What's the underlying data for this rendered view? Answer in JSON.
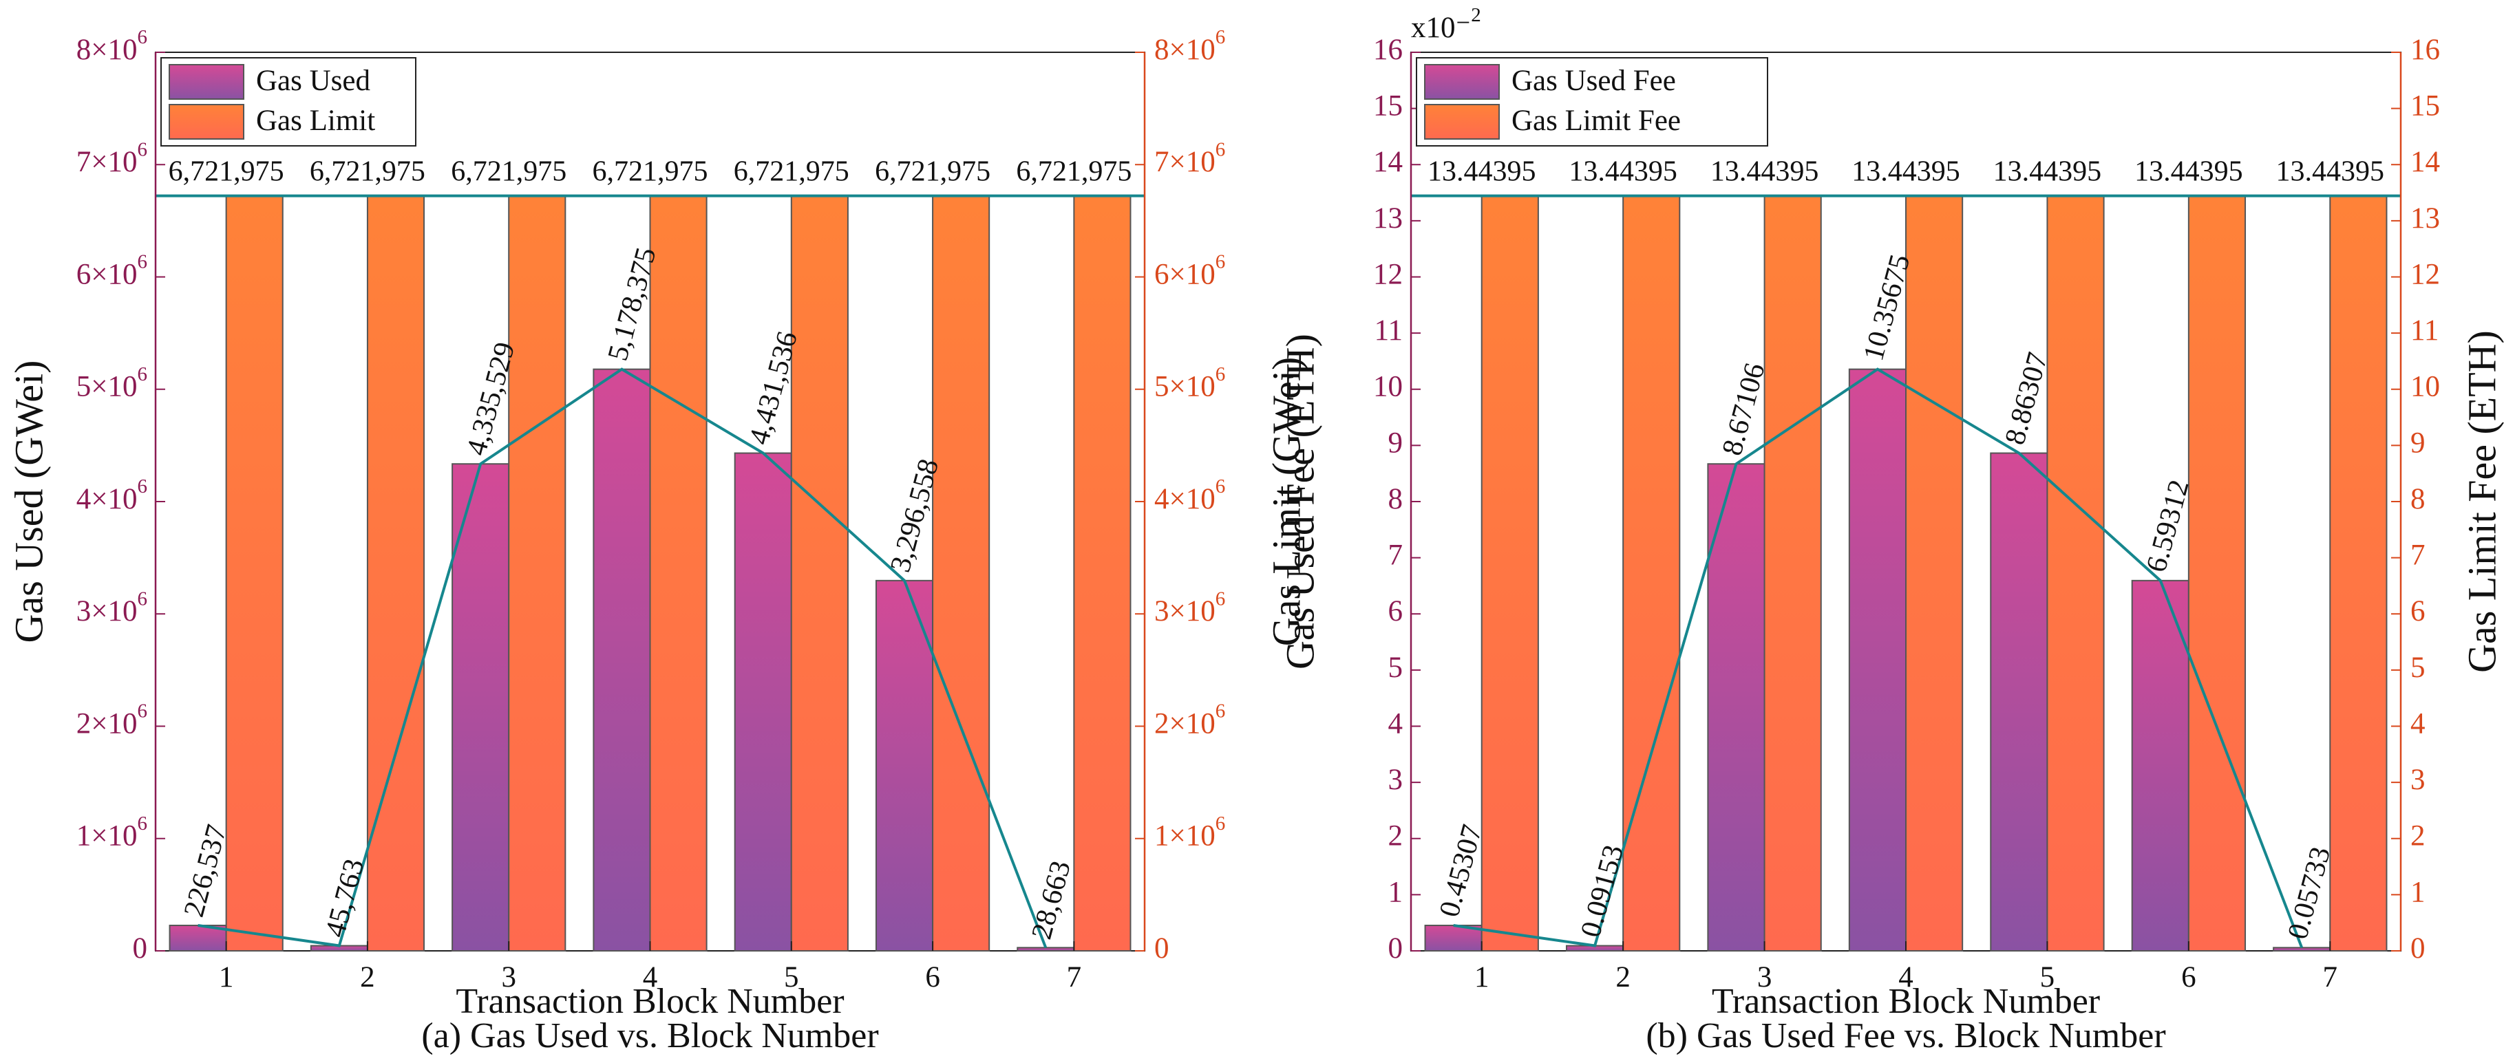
{
  "colors": {
    "used_top": "#d44a96",
    "used_bottom": "#8a52a3",
    "limit_top": "#ff8238",
    "limit_bottom": "#ff6a4f",
    "left_axis": "#8b1a52",
    "right_axis": "#d9481c",
    "trend_line": "#16878e",
    "bar_edge": "#555555"
  },
  "chart_data": [
    {
      "type": "bar",
      "title": "(a) Gas Used vs. Block Number",
      "xlabel": "Transaction Block Number",
      "ylabel_left": "Gas Used (GWei)",
      "ylabel_right": "Gas Limit (GWei)",
      "categories": [
        "1",
        "2",
        "3",
        "4",
        "5",
        "6",
        "7"
      ],
      "ylim": [
        0,
        8000000
      ],
      "yticks_left": [
        "0",
        "1×10⁶",
        "2×10⁶",
        "3×10⁶",
        "4×10⁶",
        "5×10⁶",
        "6×10⁶",
        "7×10⁶",
        "8×10⁶"
      ],
      "yticks_right": [
        "0",
        "1×10⁶",
        "2×10⁶",
        "3×10⁶",
        "4×10⁶",
        "5×10⁶",
        "6×10⁶",
        "7×10⁶",
        "8×10⁶"
      ],
      "exponent_label": "",
      "legend_position": "top-left",
      "series": [
        {
          "name": "Gas Used",
          "values": [
            226537,
            45763,
            4335529,
            5178375,
            4431536,
            3296558,
            28663
          ],
          "labels": [
            "226,537",
            "45,763",
            "4,335,529",
            "5,178,375",
            "4,431,536",
            "3,296,558",
            "28,663"
          ]
        },
        {
          "name": "Gas Limit",
          "values": [
            6721975,
            6721975,
            6721975,
            6721975,
            6721975,
            6721975,
            6721975
          ],
          "labels": [
            "6,721,975",
            "6,721,975",
            "6,721,975",
            "6,721,975",
            "6,721,975",
            "6,721,975",
            "6,721,975"
          ]
        }
      ]
    },
    {
      "type": "bar",
      "title": "(b) Gas Used Fee vs. Block Number",
      "xlabel": "Transaction Block Number",
      "ylabel_left": "Gas Used Fee (ETH)",
      "ylabel_right": "Gas Limit Fee (ETH)",
      "categories": [
        "1",
        "2",
        "3",
        "4",
        "5",
        "6",
        "7"
      ],
      "ylim": [
        0,
        16
      ],
      "yticks_left": [
        "0",
        "1",
        "2",
        "3",
        "4",
        "5",
        "6",
        "7",
        "8",
        "9",
        "10",
        "11",
        "12",
        "13",
        "14",
        "15",
        "16"
      ],
      "yticks_right": [
        "0",
        "1",
        "2",
        "3",
        "4",
        "5",
        "6",
        "7",
        "8",
        "9",
        "10",
        "11",
        "12",
        "13",
        "14",
        "15",
        "16"
      ],
      "exponent_label": "x10⁻²",
      "legend_position": "top-left",
      "series": [
        {
          "name": "Gas Used Fee",
          "values": [
            0.45307,
            0.09153,
            8.67106,
            10.35675,
            8.86307,
            6.59312,
            0.05733
          ],
          "labels": [
            "0.45307",
            "0.09153",
            "8.67106",
            "10.35675",
            "8.86307",
            "6.59312",
            "0.05733"
          ]
        },
        {
          "name": "Gas Limit Fee",
          "values": [
            13.44395,
            13.44395,
            13.44395,
            13.44395,
            13.44395,
            13.44395,
            13.44395
          ],
          "labels": [
            "13.44395",
            "13.44395",
            "13.44395",
            "13.44395",
            "13.44395",
            "13.44395",
            "13.44395"
          ]
        }
      ]
    }
  ]
}
